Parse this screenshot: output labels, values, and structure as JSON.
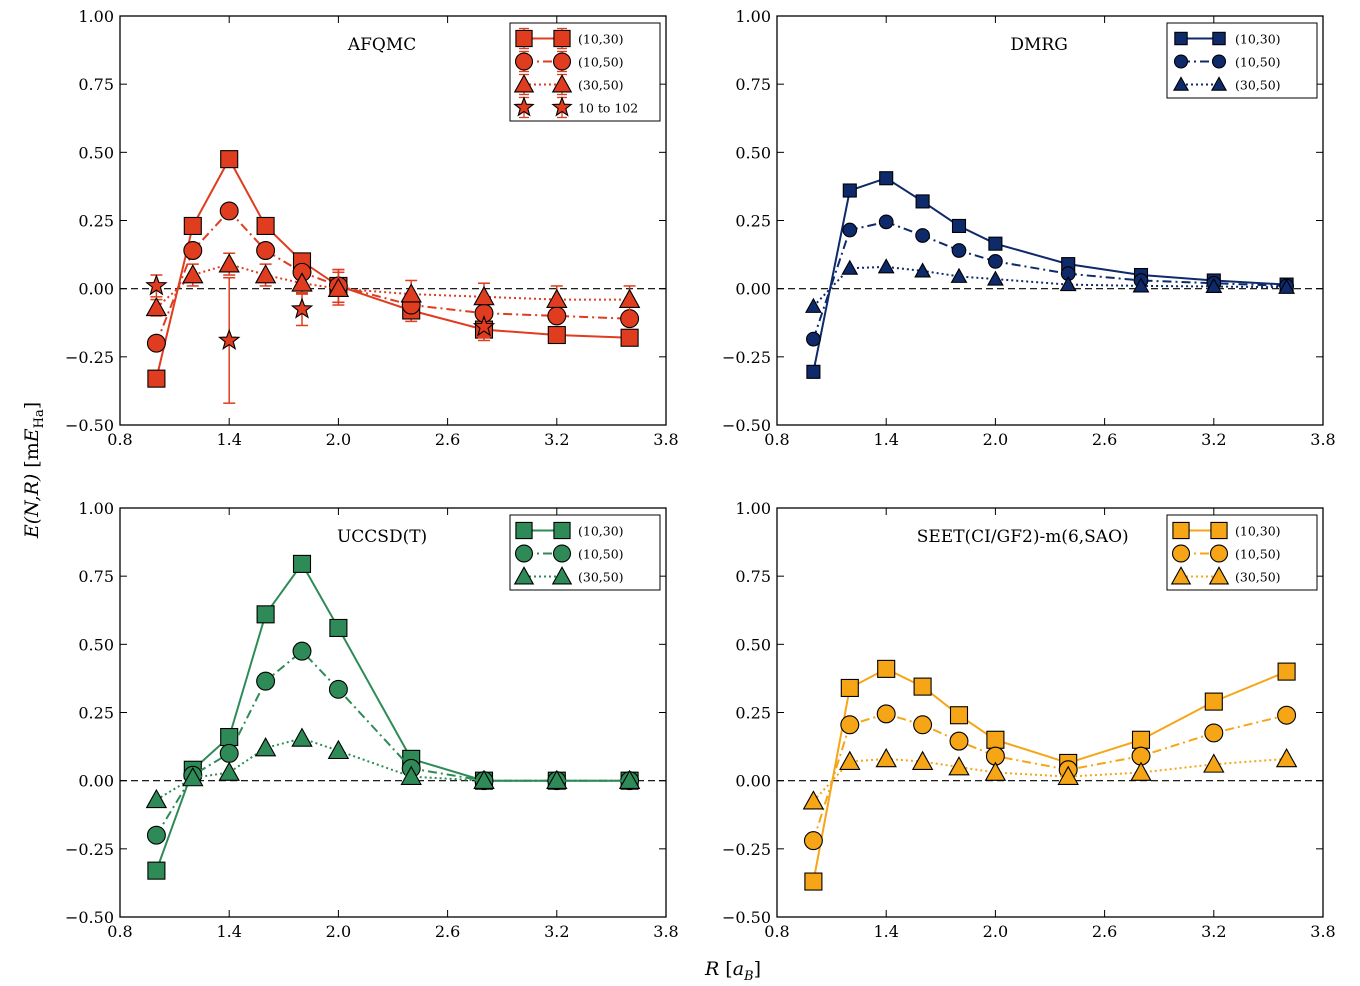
{
  "figure": {
    "ylabel_main": "E(N,R)",
    "ylabel_unit_prefix": "[m",
    "ylabel_unit_E": "E",
    "ylabel_unit_sub": "Ha",
    "ylabel_unit_suffix": "]",
    "xlabel_main": "R",
    "xlabel_unit_prefix": "[",
    "xlabel_unit_a": "a",
    "xlabel_unit_sub": "B",
    "xlabel_unit_suffix": "]"
  },
  "chart_data": [
    {
      "type": "line",
      "title": "AFQMC",
      "color": "#E03C1F",
      "x": [
        1.0,
        1.2,
        1.4,
        1.6,
        1.8,
        2.0,
        2.4,
        2.8,
        3.2,
        3.6
      ],
      "xlim": [
        0.8,
        3.8
      ],
      "ylim": [
        -0.5,
        1.0
      ],
      "xticks": [
        "0.8",
        "1.4",
        "2.0",
        "2.6",
        "3.2",
        "3.8"
      ],
      "xtick_values": [
        0.8,
        1.4,
        2.0,
        2.6,
        3.2,
        3.8
      ],
      "yticks": [
        "−0.50",
        "−0.25",
        "0.00",
        "0.25",
        "0.50",
        "0.75",
        "1.00"
      ],
      "ytick_values": [
        -0.5,
        -0.25,
        0.0,
        0.25,
        0.5,
        0.75,
        1.0
      ],
      "legend_position": "top-right",
      "series": [
        {
          "name": "(10,30)",
          "marker": "square",
          "line": "solid",
          "values": [
            -0.33,
            0.23,
            0.475,
            0.23,
            0.1,
            0.01,
            -0.08,
            -0.15,
            -0.17,
            -0.18
          ],
          "errors": [
            0.02,
            0.02,
            0.02,
            0.02,
            0.02,
            0.06,
            0.04,
            0.04,
            0.02,
            0.02
          ]
        },
        {
          "name": "(10,50)",
          "marker": "circle",
          "line": "dashdot",
          "values": [
            -0.2,
            0.14,
            0.285,
            0.14,
            0.06,
            0.01,
            -0.06,
            -0.09,
            -0.1,
            -0.11
          ],
          "errors": [
            0.01,
            0.01,
            0.01,
            0.01,
            0.01,
            0.06,
            0.04,
            0.04,
            0.02,
            0.02
          ]
        },
        {
          "name": "(30,50)",
          "marker": "triangle",
          "line": "dotted",
          "values": [
            -0.07,
            0.05,
            0.09,
            0.05,
            0.02,
            0.0,
            -0.02,
            -0.03,
            -0.04,
            -0.04
          ],
          "errors": [
            0.03,
            0.04,
            0.04,
            0.04,
            0.04,
            0.06,
            0.05,
            0.05,
            0.05,
            0.05
          ]
        },
        {
          "name": "10 to 102",
          "marker": "star",
          "line": "none",
          "x": [
            1.0,
            1.4,
            1.8,
            2.8
          ],
          "values": [
            0.01,
            -0.19,
            -0.075,
            -0.14
          ],
          "errors": [
            0.04,
            0.23,
            0.06,
            0.04
          ]
        }
      ]
    },
    {
      "type": "line",
      "title": "DMRG",
      "color": "#0E2A6B",
      "x": [
        1.0,
        1.2,
        1.4,
        1.6,
        1.8,
        2.0,
        2.4,
        2.8,
        3.2,
        3.6
      ],
      "xlim": [
        0.8,
        3.8
      ],
      "ylim": [
        -0.5,
        1.0
      ],
      "xticks": [
        "0.8",
        "1.4",
        "2.0",
        "2.6",
        "3.2",
        "3.8"
      ],
      "xtick_values": [
        0.8,
        1.4,
        2.0,
        2.6,
        3.2,
        3.8
      ],
      "yticks": [
        "−0.50",
        "−0.25",
        "0.00",
        "0.25",
        "0.50",
        "0.75",
        "1.00"
      ],
      "ytick_values": [
        -0.5,
        -0.25,
        0.0,
        0.25,
        0.5,
        0.75,
        1.0
      ],
      "legend_position": "top-right",
      "series": [
        {
          "name": "(10,30)",
          "marker": "square",
          "line": "solid",
          "values": [
            -0.305,
            0.36,
            0.405,
            0.32,
            0.23,
            0.165,
            0.09,
            0.05,
            0.03,
            0.015
          ]
        },
        {
          "name": "(10,50)",
          "marker": "circle",
          "line": "dashdot",
          "values": [
            -0.185,
            0.215,
            0.245,
            0.195,
            0.14,
            0.1,
            0.055,
            0.03,
            0.02,
            0.01
          ]
        },
        {
          "name": "(30,50)",
          "marker": "triangle",
          "line": "dotted",
          "values": [
            -0.065,
            0.075,
            0.08,
            0.065,
            0.045,
            0.035,
            0.015,
            0.01,
            0.008,
            0.005
          ]
        }
      ]
    },
    {
      "type": "line",
      "title": "UCCSD(T)",
      "color": "#2E8B57",
      "x": [
        1.0,
        1.2,
        1.4,
        1.6,
        1.8,
        2.0,
        2.4,
        2.8,
        3.2,
        3.6
      ],
      "xlim": [
        0.8,
        3.8
      ],
      "ylim": [
        -0.5,
        1.0
      ],
      "xticks": [
        "0.8",
        "1.4",
        "2.0",
        "2.6",
        "3.2",
        "3.8"
      ],
      "xtick_values": [
        0.8,
        1.4,
        2.0,
        2.6,
        3.2,
        3.8
      ],
      "yticks": [
        "−0.50",
        "−0.25",
        "0.00",
        "0.25",
        "0.50",
        "0.75",
        "1.00"
      ],
      "ytick_values": [
        -0.5,
        -0.25,
        0.0,
        0.25,
        0.5,
        0.75,
        1.0
      ],
      "legend_position": "top-right",
      "series": [
        {
          "name": "(10,30)",
          "marker": "square",
          "line": "solid",
          "values": [
            -0.33,
            0.04,
            0.16,
            0.61,
            0.795,
            0.56,
            0.08,
            0.0,
            0.0,
            0.0
          ]
        },
        {
          "name": "(10,50)",
          "marker": "circle",
          "line": "dashdot",
          "values": [
            -0.2,
            0.02,
            0.1,
            0.365,
            0.475,
            0.335,
            0.045,
            0.0,
            0.0,
            0.0
          ]
        },
        {
          "name": "(30,50)",
          "marker": "triangle",
          "line": "dotted",
          "values": [
            -0.07,
            0.01,
            0.03,
            0.12,
            0.155,
            0.11,
            0.015,
            0.0,
            0.0,
            0.0
          ]
        }
      ]
    },
    {
      "type": "line",
      "title": "SEET(CI/GF2)-m(6,SAO)",
      "color": "#F5A516",
      "x": [
        1.0,
        1.2,
        1.4,
        1.6,
        1.8,
        2.0,
        2.4,
        2.8,
        3.2,
        3.6
      ],
      "xlim": [
        0.8,
        3.8
      ],
      "ylim": [
        -0.5,
        1.0
      ],
      "xticks": [
        "0.8",
        "1.4",
        "2.0",
        "2.6",
        "3.2",
        "3.8"
      ],
      "xtick_values": [
        0.8,
        1.4,
        2.0,
        2.6,
        3.2,
        3.8
      ],
      "yticks": [
        "−0.50",
        "−0.25",
        "0.00",
        "0.25",
        "0.50",
        "0.75",
        "1.00"
      ],
      "ytick_values": [
        -0.5,
        -0.25,
        0.0,
        0.25,
        0.5,
        0.75,
        1.0
      ],
      "legend_position": "top-right",
      "series": [
        {
          "name": "(10,30)",
          "marker": "square",
          "line": "solid",
          "values": [
            -0.37,
            0.34,
            0.41,
            0.345,
            0.24,
            0.15,
            0.065,
            0.15,
            0.29,
            0.4
          ]
        },
        {
          "name": "(10,50)",
          "marker": "circle",
          "line": "dashdot",
          "values": [
            -0.22,
            0.205,
            0.245,
            0.205,
            0.145,
            0.09,
            0.04,
            0.09,
            0.175,
            0.24
          ]
        },
        {
          "name": "(30,50)",
          "marker": "triangle",
          "line": "dotted",
          "values": [
            -0.075,
            0.07,
            0.08,
            0.07,
            0.05,
            0.03,
            0.015,
            0.03,
            0.06,
            0.08
          ]
        }
      ]
    }
  ]
}
